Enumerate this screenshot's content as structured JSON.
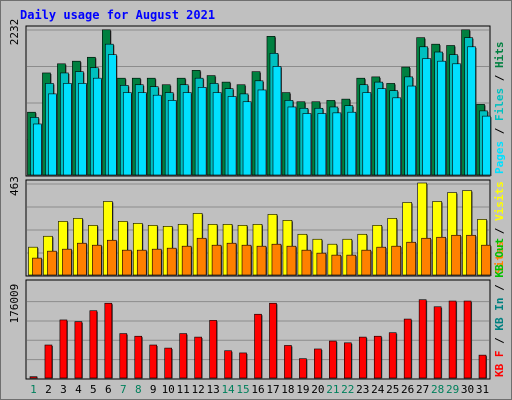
{
  "chart_data": {
    "type": "bar",
    "title": "Daily usage for August 2021",
    "categories": [
      "1",
      "2",
      "3",
      "4",
      "5",
      "6",
      "7",
      "8",
      "9",
      "10",
      "11",
      "12",
      "13",
      "14",
      "15",
      "16",
      "17",
      "18",
      "19",
      "20",
      "21",
      "22",
      "23",
      "24",
      "25",
      "26",
      "27",
      "28",
      "29",
      "30",
      "31"
    ],
    "weekend_days": [
      "1",
      "7",
      "8",
      "14",
      "15",
      "21",
      "22",
      "28",
      "29"
    ],
    "panels": [
      {
        "id": "hits_files_pages",
        "max_label": "2232",
        "ylim": [
          0,
          2232
        ],
        "legend": [
          "Pages",
          "Files",
          "Hits"
        ],
        "series": [
          {
            "name": "Hits",
            "color": "#008040",
            "values": [
              960,
              1560,
              1700,
              1740,
              1800,
              2220,
              1480,
              1480,
              1480,
              1380,
              1480,
              1600,
              1520,
              1420,
              1380,
              1580,
              2120,
              1260,
              1120,
              1120,
              1140,
              1160,
              1480,
              1500,
              1400,
              1650,
              2100,
              2000,
              1980,
              2220,
              1080
            ]
          },
          {
            "name": "Files",
            "color": "#00c0c0",
            "values": [
              880,
              1400,
              1560,
              1580,
              1640,
              2000,
              1370,
              1380,
              1350,
              1260,
              1380,
              1480,
              1400,
              1320,
              1240,
              1440,
              1860,
              1140,
              1020,
              1020,
              1040,
              1060,
              1380,
              1420,
              1290,
              1500,
              1960,
              1880,
              1840,
              2100,
              980
            ]
          },
          {
            "name": "Pages",
            "color": "#00e0ff",
            "values": [
              780,
              1240,
              1400,
              1400,
              1480,
              1840,
              1260,
              1260,
              1220,
              1140,
              1260,
              1340,
              1260,
              1200,
              1120,
              1300,
              1660,
              1040,
              940,
              940,
              950,
              960,
              1260,
              1320,
              1180,
              1360,
              1780,
              1740,
              1700,
              1960,
              900
            ]
          }
        ]
      },
      {
        "id": "visits_sites",
        "max_label": "463",
        "ylim": [
          0,
          463
        ],
        "legend": [
          "Sites",
          "Visits"
        ],
        "series": [
          {
            "name": "Visits",
            "color": "#ffff00",
            "values": [
              140,
              195,
              270,
              285,
              250,
              370,
              270,
              260,
              250,
              245,
              255,
              310,
              255,
              255,
              250,
              255,
              305,
              275,
              205,
              180,
              155,
              180,
              205,
              250,
              285,
              365,
              463,
              370,
              415,
              425,
              280
            ]
          },
          {
            "name": "Sites",
            "color": "#ff8000",
            "values": [
              85,
              120,
              130,
              160,
              150,
              175,
              125,
              125,
              130,
              135,
              145,
              185,
              150,
              160,
              150,
              145,
              155,
              145,
              125,
              110,
              100,
              100,
              125,
              140,
              145,
              165,
              185,
              190,
              200,
              200,
              150
            ]
          }
        ]
      },
      {
        "id": "kbytes",
        "max_label": "176009",
        "ylim": [
          0,
          216000
        ],
        "legend": [
          "KB F",
          "KB In",
          "KB Out"
        ],
        "series": [
          {
            "name": "KB F",
            "color": "#ff0000",
            "values": [
              3000,
              75000,
              132000,
              128000,
              153000,
              170000,
              101000,
              95000,
              75000,
              68000,
              101000,
              93000,
              131000,
              62000,
              57000,
              145000,
              170000,
              74000,
              44000,
              66000,
              84000,
              80000,
              93000,
              95000,
              103000,
              134000,
              178000,
              162000,
              175000,
              175000,
              52000
            ]
          }
        ]
      }
    ]
  },
  "colors": {
    "background": "#c0c0c0",
    "plot": "#c0c0c0",
    "gridline": "#8c8c8c",
    "title": "#0000ff",
    "weekday_label": "#000000",
    "weekend_label": "#00805c",
    "outline": "#000000"
  },
  "legend_colors": {
    "Pages": "#00e0ff",
    "Files": "#00c0c0",
    "Hits": "#008040",
    "Sites": "#ff8000",
    "Visits": "#ffff00",
    "KB F": "#ff0000",
    "KB In": "#008080",
    "KB Out": "#00c000"
  },
  "legend_separator": " / "
}
